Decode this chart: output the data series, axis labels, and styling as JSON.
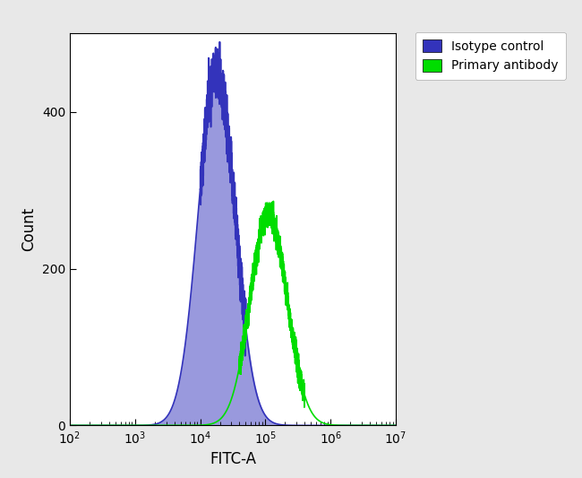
{
  "title": "",
  "xlabel": "FITC-A",
  "ylabel": "Count",
  "xlim_log": [
    2,
    7
  ],
  "ylim": [
    0,
    500
  ],
  "yticks": [
    0,
    200,
    400
  ],
  "background_color": "#e8e8e8",
  "plot_bg_color": "#ffffff",
  "blue_outline_color": "#3333bb",
  "blue_fill_color": "#9999dd",
  "green_color": "#00dd00",
  "legend_labels": [
    "Isotype control",
    "Primary antibody"
  ],
  "blue_peak_log": 4.25,
  "blue_peak_height": 450,
  "blue_sigma_log": 0.28,
  "green_peak_log": 5.05,
  "green_peak_height": 270,
  "green_sigma_log": 0.28,
  "noise_seed": 42
}
